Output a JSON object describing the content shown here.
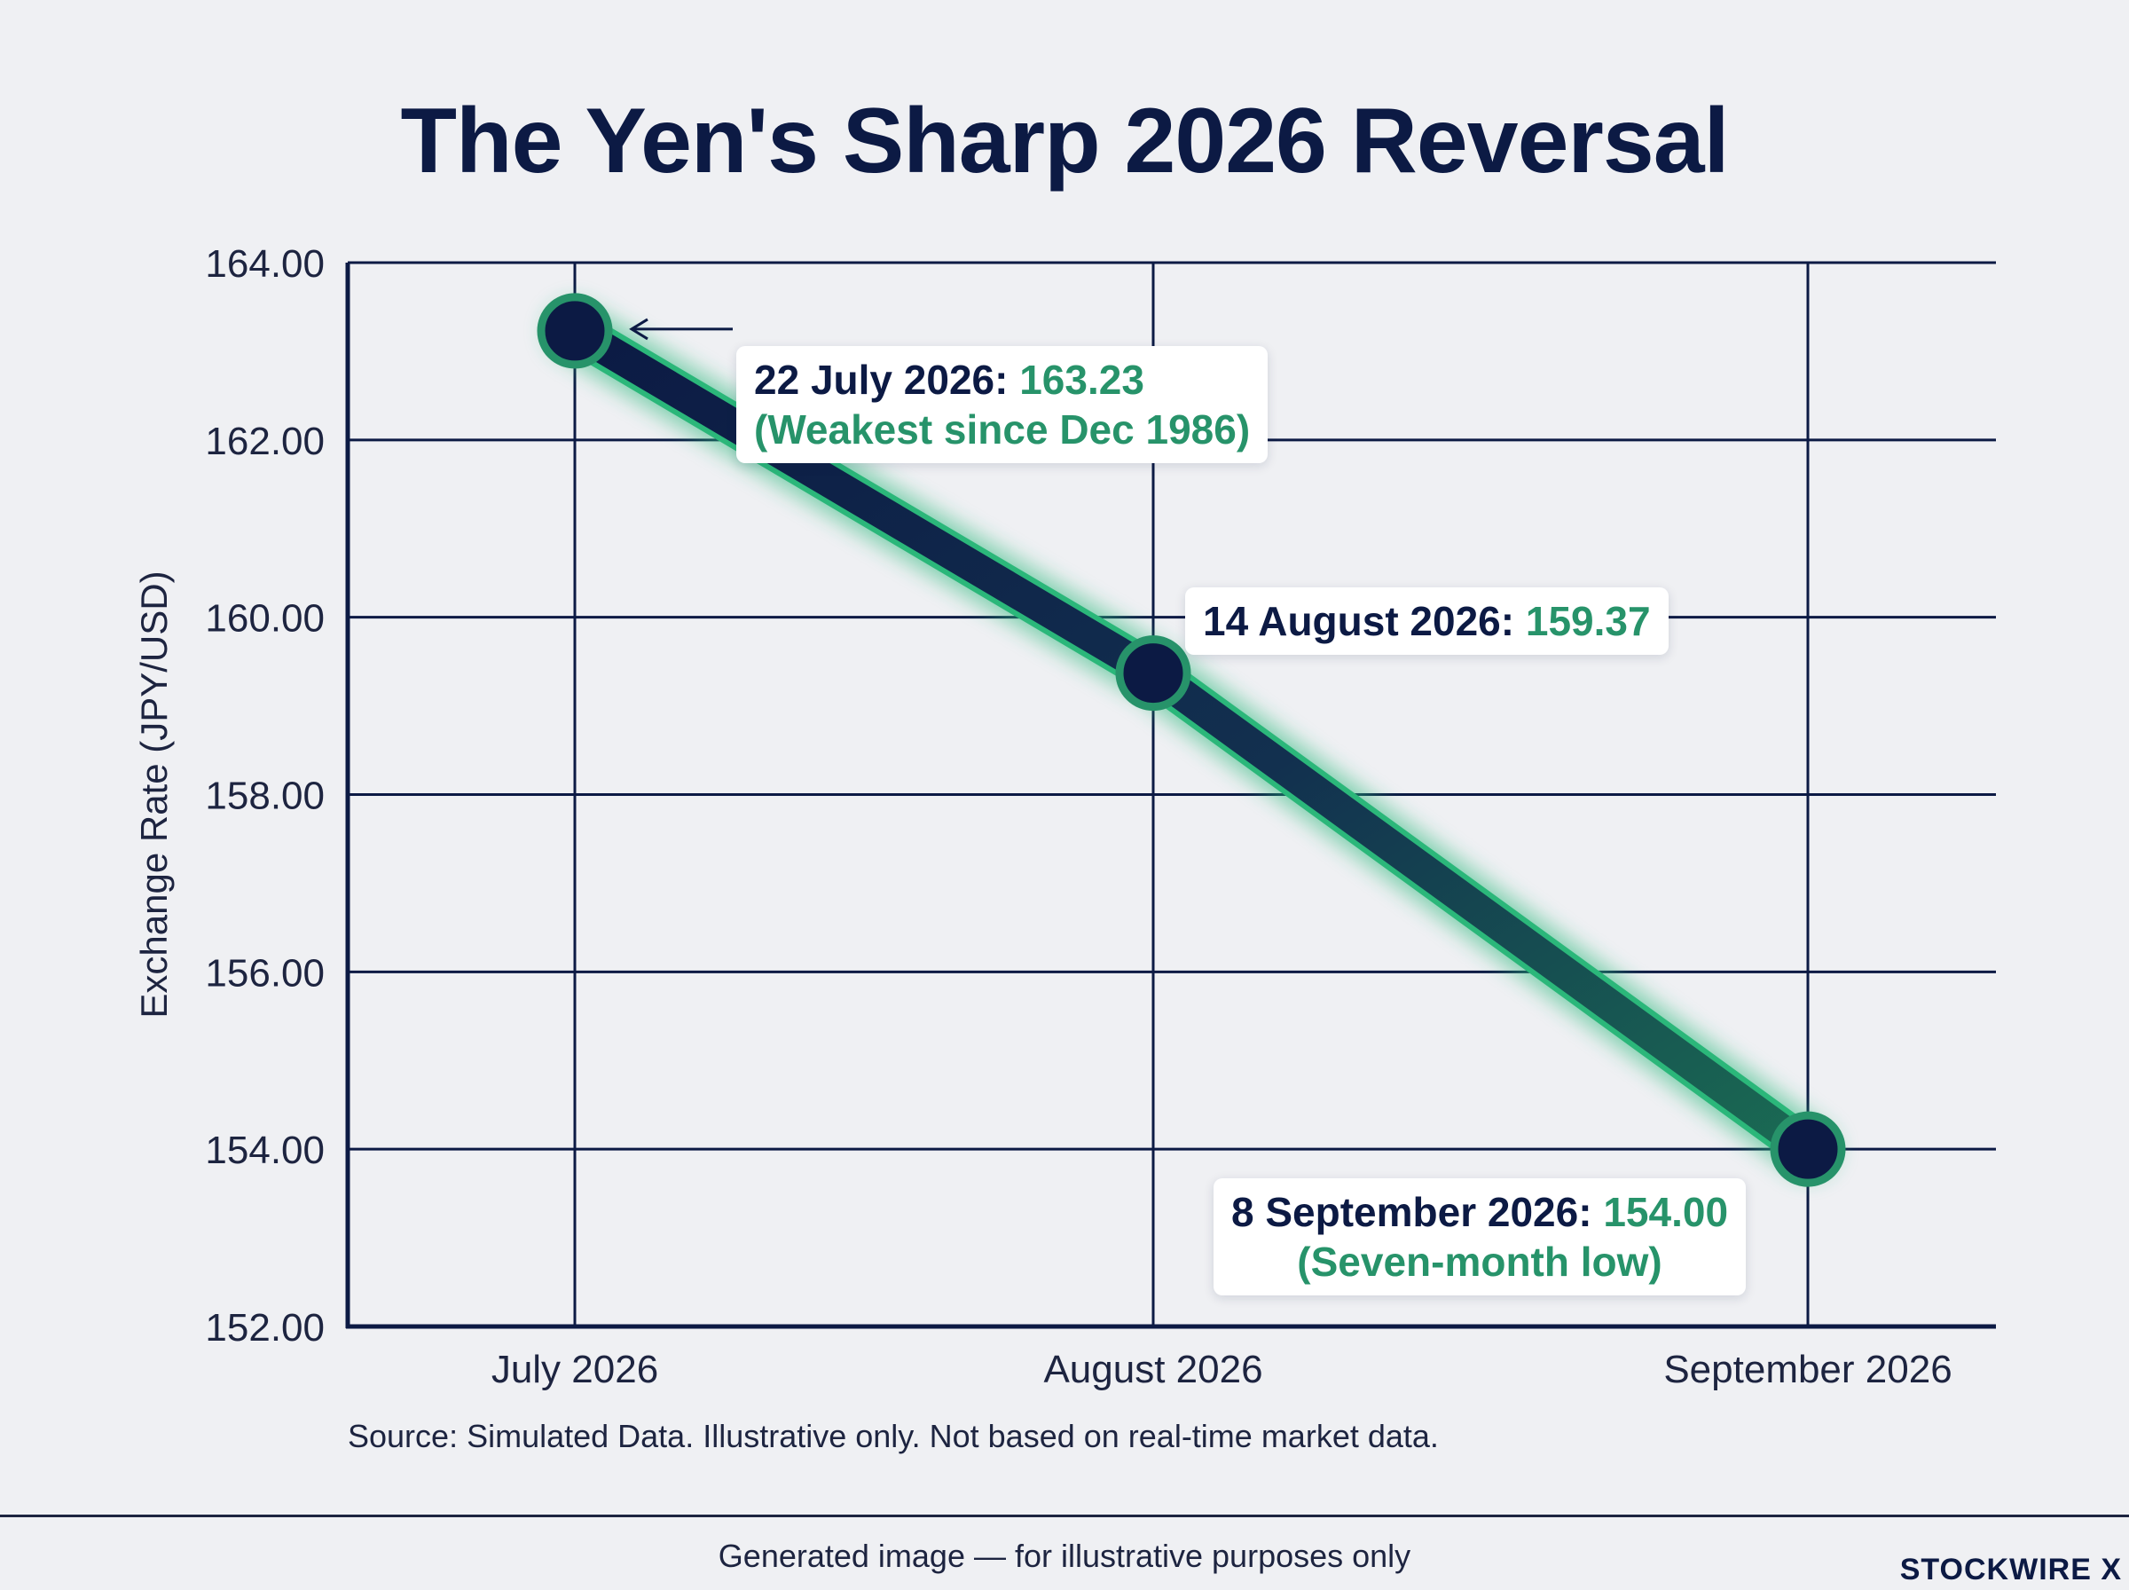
{
  "chart_data": {
    "type": "line",
    "title": "The Yen's Sharp 2026 Reversal",
    "ylabel": "Exchange Rate (JPY/USD)",
    "xlabel": "",
    "categories": [
      "July 2026",
      "August 2026",
      "September 2026"
    ],
    "x": [
      "2026-07-22",
      "2026-08-14",
      "2026-09-08"
    ],
    "values": [
      163.23,
      159.37,
      154.0
    ],
    "ylim": [
      152.0,
      164.0
    ],
    "yticks": [
      "164.00",
      "162.00",
      "160.00",
      "158.00",
      "156.00",
      "154.00",
      "152.00"
    ],
    "grid": true,
    "annotations": [
      {
        "label": "22 July 2026:",
        "value": "163.23",
        "note": "(Weakest since Dec 1986)"
      },
      {
        "label": "14 August 2026:",
        "value": "159.37",
        "note": ""
      },
      {
        "label": "8 September 2026:",
        "value": "154.00",
        "note": "(Seven-month low)"
      }
    ],
    "colors": {
      "line": "#0c1a44",
      "glow": "#2bb77a",
      "accent": "#27936a",
      "axis": "#0c1a44",
      "background": "#eff0f3"
    }
  },
  "source": "Source: Simulated Data. Illustrative only. Not based on real-time market data.",
  "footer": {
    "note": "Generated image — for illustrative purposes only",
    "brand": "STOCKWIRE X"
  }
}
